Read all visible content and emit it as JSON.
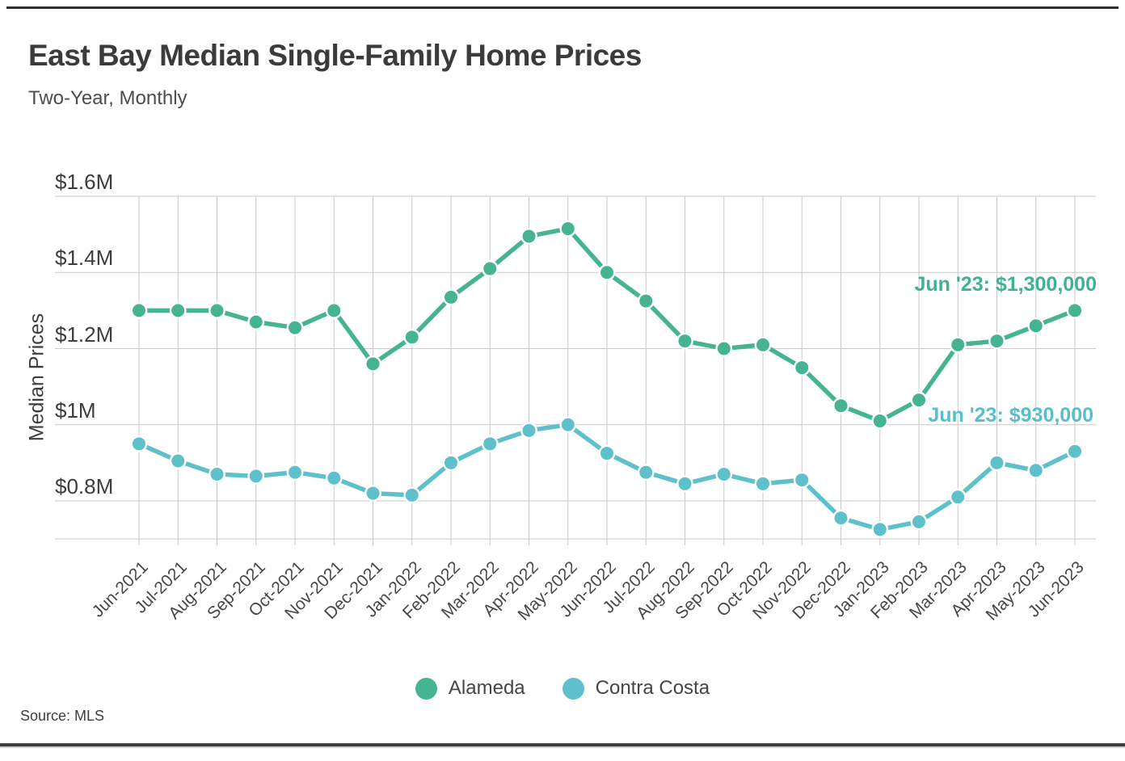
{
  "header": {
    "title": "East Bay Median Single-Family Home Prices",
    "subtitle": "Two-Year, Monthly"
  },
  "footer": {
    "source": "Source: MLS"
  },
  "colors": {
    "alameda": "#46b493",
    "contra_costa": "#5ec0cb",
    "grid": "#c9c9c9",
    "text": "#3b3b3b"
  },
  "y_axis": {
    "label": "Median Prices",
    "ticks": [
      {
        "label": "$1.6M",
        "value": 1.6
      },
      {
        "label": "$1.4M",
        "value": 1.4
      },
      {
        "label": "$1.2M",
        "value": 1.2
      },
      {
        "label": "$1M",
        "value": 1.0
      },
      {
        "label": "$0.8M",
        "value": 0.8
      }
    ]
  },
  "legend": {
    "items": [
      {
        "label": "Alameda",
        "color": "#46b493"
      },
      {
        "label": "Contra Costa",
        "color": "#5ec0cb"
      }
    ]
  },
  "annotations": [
    {
      "text": "Jun '23: $1,300,000",
      "series": "Alameda",
      "color": "#3eb295"
    },
    {
      "text": "Jun '23: $930,000",
      "series": "Contra Costa",
      "color": "#56bfcd"
    }
  ],
  "chart_data": {
    "type": "line",
    "title": "East Bay Median Single-Family Home Prices",
    "subtitle": "Two-Year, Monthly",
    "source": "MLS",
    "x": [
      "Jun-2021",
      "Jul-2021",
      "Aug-2021",
      "Sep-2021",
      "Oct-2021",
      "Nov-2021",
      "Dec-2021",
      "Jan-2022",
      "Feb-2022",
      "Mar-2022",
      "Apr-2022",
      "May-2022",
      "Jun-2022",
      "Jul-2022",
      "Aug-2022",
      "Sep-2022",
      "Oct-2022",
      "Nov-2022",
      "Dec-2022",
      "Jan-2023",
      "Feb-2023",
      "Mar-2023",
      "Apr-2023",
      "May-2023",
      "Jun-2023"
    ],
    "series": [
      {
        "name": "Alameda",
        "color": "#46b493",
        "values_million_usd": [
          1.3,
          1.3,
          1.3,
          1.27,
          1.255,
          1.3,
          1.16,
          1.23,
          1.335,
          1.41,
          1.495,
          1.515,
          1.4,
          1.325,
          1.22,
          1.2,
          1.21,
          1.15,
          1.05,
          1.01,
          1.065,
          1.21,
          1.22,
          1.26,
          1.3
        ]
      },
      {
        "name": "Contra Costa",
        "color": "#5ec0cb",
        "values_million_usd": [
          0.95,
          0.905,
          0.87,
          0.865,
          0.875,
          0.86,
          0.82,
          0.815,
          0.9,
          0.95,
          0.985,
          1.0,
          0.925,
          0.875,
          0.845,
          0.87,
          0.845,
          0.855,
          0.755,
          0.725,
          0.745,
          0.81,
          0.9,
          0.88,
          0.93
        ]
      }
    ],
    "ylabel": "Median Prices",
    "xlabel": "",
    "ylim": [
      0.7,
      1.6
    ],
    "yticks_million_usd": [
      1.6,
      1.4,
      1.2,
      1.0,
      0.8
    ],
    "ytick_labels": [
      "$1.6M",
      "$1.4M",
      "$1.2M",
      "$1M",
      "$0.8M"
    ],
    "grid": true,
    "legend_position": "bottom",
    "callouts": [
      "Jun '23: $1,300,000 (Alameda, last point)",
      "Jun '23: $930,000 (Contra Costa, last point)"
    ]
  }
}
